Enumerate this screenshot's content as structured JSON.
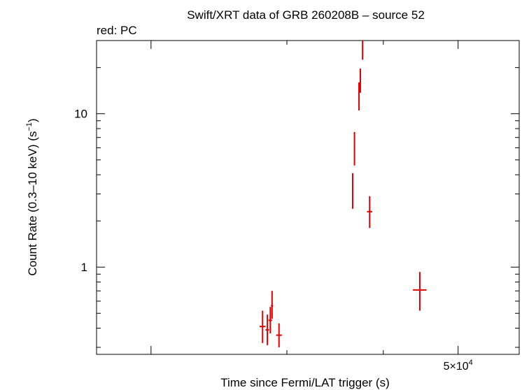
{
  "chart_data": {
    "type": "scatter",
    "title": "Swift/XRT data of GRB 260208B – source 52",
    "subtitle": "red: PC",
    "xlabel": "Time since Fermi/LAT trigger (s)",
    "ylabel": "Count Rate (0.3–10 keV) (s",
    "ylabel_sup": "−1",
    "ylabel_end": ")",
    "xscale": "log",
    "yscale": "log",
    "xlim": [
      17000,
      60000
    ],
    "ylim": [
      0.27,
      30
    ],
    "y_tick_labels": [
      {
        "value": 10,
        "label": "10"
      },
      {
        "value": 1,
        "label": "1"
      }
    ],
    "x_tick_labels": [
      {
        "value": 50000,
        "mantissa": "5×10",
        "exp": "4"
      }
    ],
    "x_major_ticks": [
      20000,
      30000,
      40000,
      50000
    ],
    "y_minor_ticks": [
      0.3,
      0.4,
      0.5,
      0.6,
      0.7,
      0.8,
      0.9,
      2,
      3,
      4,
      5,
      6,
      7,
      8,
      9,
      20,
      30
    ],
    "color": "#e00000",
    "series": [
      {
        "points": [
          {
            "x": 27900,
            "xerr": [
              250,
              250
            ],
            "y": 0.41,
            "yerr": [
              0.09,
              0.11
            ]
          },
          {
            "x": 28300,
            "xerr": [
              150,
              150
            ],
            "y": 0.39,
            "yerr": [
              0.08,
              0.1
            ]
          },
          {
            "x": 28550,
            "xerr": [
              150,
              150
            ],
            "y": 0.45,
            "yerr": [
              0.08,
              0.1
            ]
          },
          {
            "x": 28700,
            "xerr": [
              100,
              100
            ],
            "y": 0.56,
            "yerr": [
              0.1,
              0.14
            ]
          },
          {
            "x": 29300,
            "xerr": [
              250,
              250
            ],
            "y": 0.36,
            "yerr": [
              0.06,
              0.07
            ]
          },
          {
            "x": 36500,
            "xerr": [
              60,
              60
            ],
            "y": 3.2,
            "yerr": [
              0.8,
              0.9
            ]
          },
          {
            "x": 36700,
            "xerr": [
              60,
              60
            ],
            "y": 6.0,
            "yerr": [
              1.4,
              1.6
            ]
          },
          {
            "x": 37200,
            "xerr": [
              60,
              60
            ],
            "y": 13.0,
            "yerr": [
              2.5,
              3.0
            ]
          },
          {
            "x": 37350,
            "xerr": [
              60,
              60
            ],
            "y": 16.5,
            "yerr": [
              2.8,
              3.2
            ]
          },
          {
            "x": 37600,
            "xerr": [
              60,
              60
            ],
            "y": 26.0,
            "yerr": [
              3.5,
              4.0
            ]
          },
          {
            "x": 38400,
            "xerr": [
              300,
              300
            ],
            "y": 2.3,
            "yerr": [
              0.5,
              0.6
            ]
          },
          {
            "x": 44600,
            "xerr": [
              900,
              900
            ],
            "y": 0.71,
            "yerr": [
              0.19,
              0.22
            ]
          }
        ]
      }
    ]
  }
}
